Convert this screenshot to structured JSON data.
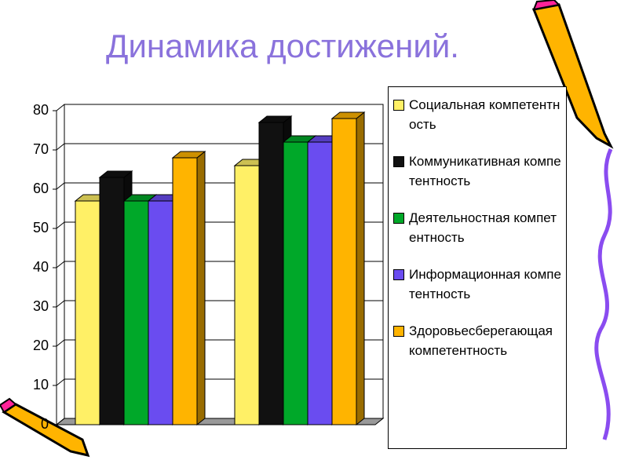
{
  "chart_data": {
    "type": "bar3d",
    "title": "Динамика достижений.",
    "categories": [
      null,
      null
    ],
    "series": [
      {
        "name": "Социальная компетентность",
        "color": "#fff066",
        "values": [
          57,
          66
        ]
      },
      {
        "name": "Коммуникативная компетентность",
        "color": "#111111",
        "values": [
          63,
          77
        ]
      },
      {
        "name": "Деятельностная компетентность",
        "color": "#00a829",
        "values": [
          57,
          72
        ]
      },
      {
        "name": "Информационная компетентность",
        "color": "#6a4cf0",
        "values": [
          57,
          72
        ]
      },
      {
        "name": "Здоровьесберегающая компетентность",
        "color": "#ffb400",
        "values": [
          68,
          78
        ]
      }
    ],
    "ylim": [
      0,
      80
    ],
    "yticks": [
      0,
      10,
      20,
      30,
      40,
      50,
      60,
      70,
      80
    ],
    "grid": true
  }
}
